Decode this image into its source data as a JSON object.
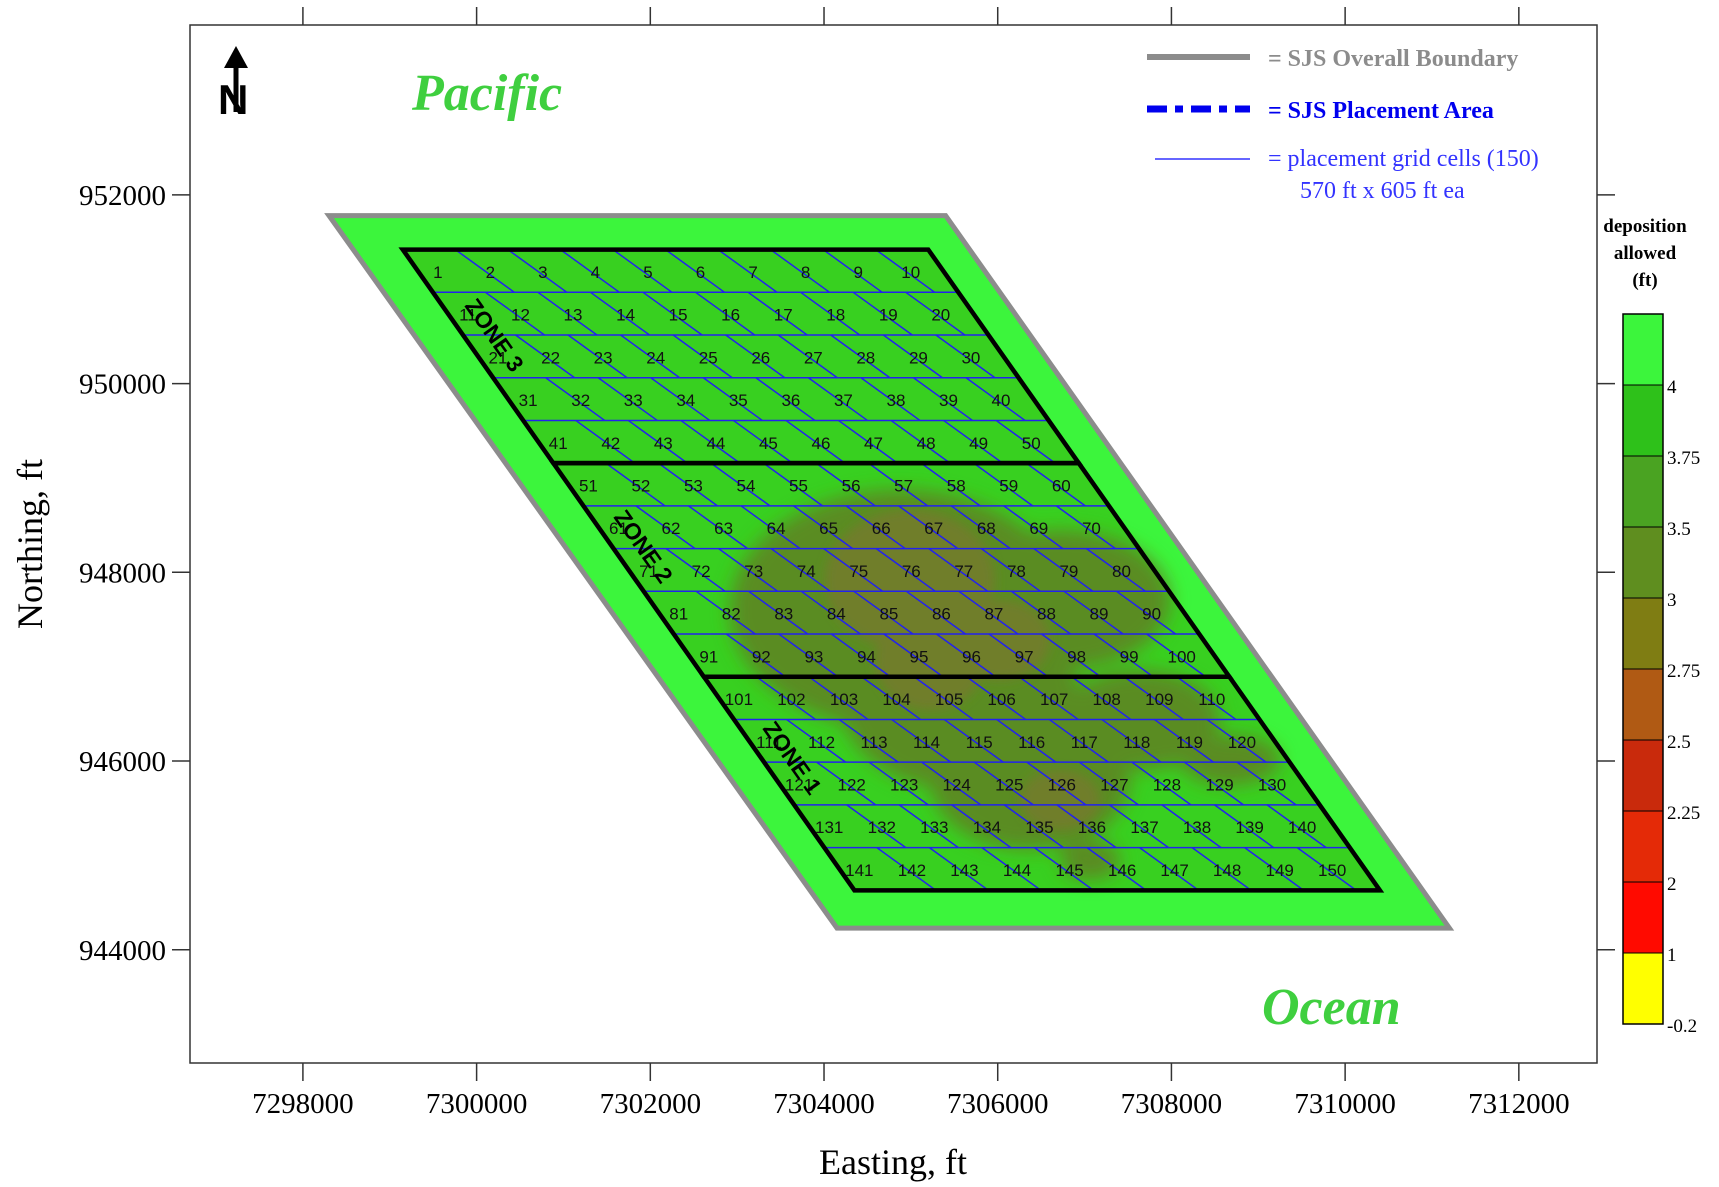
{
  "axes": {
    "xlabel": "Easting, ft",
    "ylabel": "Northing, ft",
    "xlim": [
      7296700,
      7312900
    ],
    "ylim": [
      942800,
      953800
    ],
    "xticks": [
      7298000,
      7300000,
      7302000,
      7304000,
      7306000,
      7308000,
      7310000,
      7312000
    ],
    "yticks": [
      944000,
      946000,
      948000,
      950000,
      952000
    ]
  },
  "labels": {
    "pacific": "Pacific",
    "ocean": "Ocean",
    "zone1": "ZONE 1",
    "zone2": "ZONE 2",
    "zone3": "ZONE 3",
    "north_letter": "N"
  },
  "legend": {
    "boundary": {
      "text": "= SJS Overall Boundary",
      "color": "#8c8c8c"
    },
    "placement": {
      "text": "= SJS Placement Area",
      "color": "#0000ee"
    },
    "grid": {
      "text": "= placement grid cells (150)",
      "sub": "570 ft x 605 ft ea",
      "color": "#3333ff"
    }
  },
  "colorbar": {
    "title": [
      "deposition",
      "allowed",
      "(ft)"
    ],
    "ticks": [
      "4",
      "3.75",
      "3.5",
      "3",
      "2.75",
      "2.5",
      "2.25",
      "2",
      "1",
      "-0.2"
    ],
    "colors": [
      "#3cf53c",
      "#2ec11a",
      "#4aa322",
      "#5f8e1f",
      "#7f7d13",
      "#b05a14",
      "#c92a0c",
      "#e42a07",
      "#ff0a00",
      "#ffff00"
    ]
  },
  "colors": {
    "background_fill": "#3cf53c",
    "grid_fill": "#38d020",
    "shoal": "#5a8c24",
    "shoal_core": "#6f7e2a",
    "pacific_text": "#3fcf3f",
    "zone_outline": "#000000",
    "grid_line": "#2222ee"
  },
  "map_data": {
    "overall_boundary": [
      [
        7298300,
        951780
      ],
      [
        7305400,
        951780
      ],
      [
        7311200,
        944230
      ],
      [
        7304150,
        944230
      ]
    ],
    "placement_area": {
      "top": 951420,
      "bottom": 944630,
      "left_top_x": 7299150,
      "right_top_x": 7305200,
      "left_bottom_x": 7304350,
      "right_bottom_x": 7310400
    },
    "rows": 15,
    "cols": 10,
    "zone_dividers_after_rows": [
      5,
      10
    ],
    "cell_numbers_start": 1
  }
}
